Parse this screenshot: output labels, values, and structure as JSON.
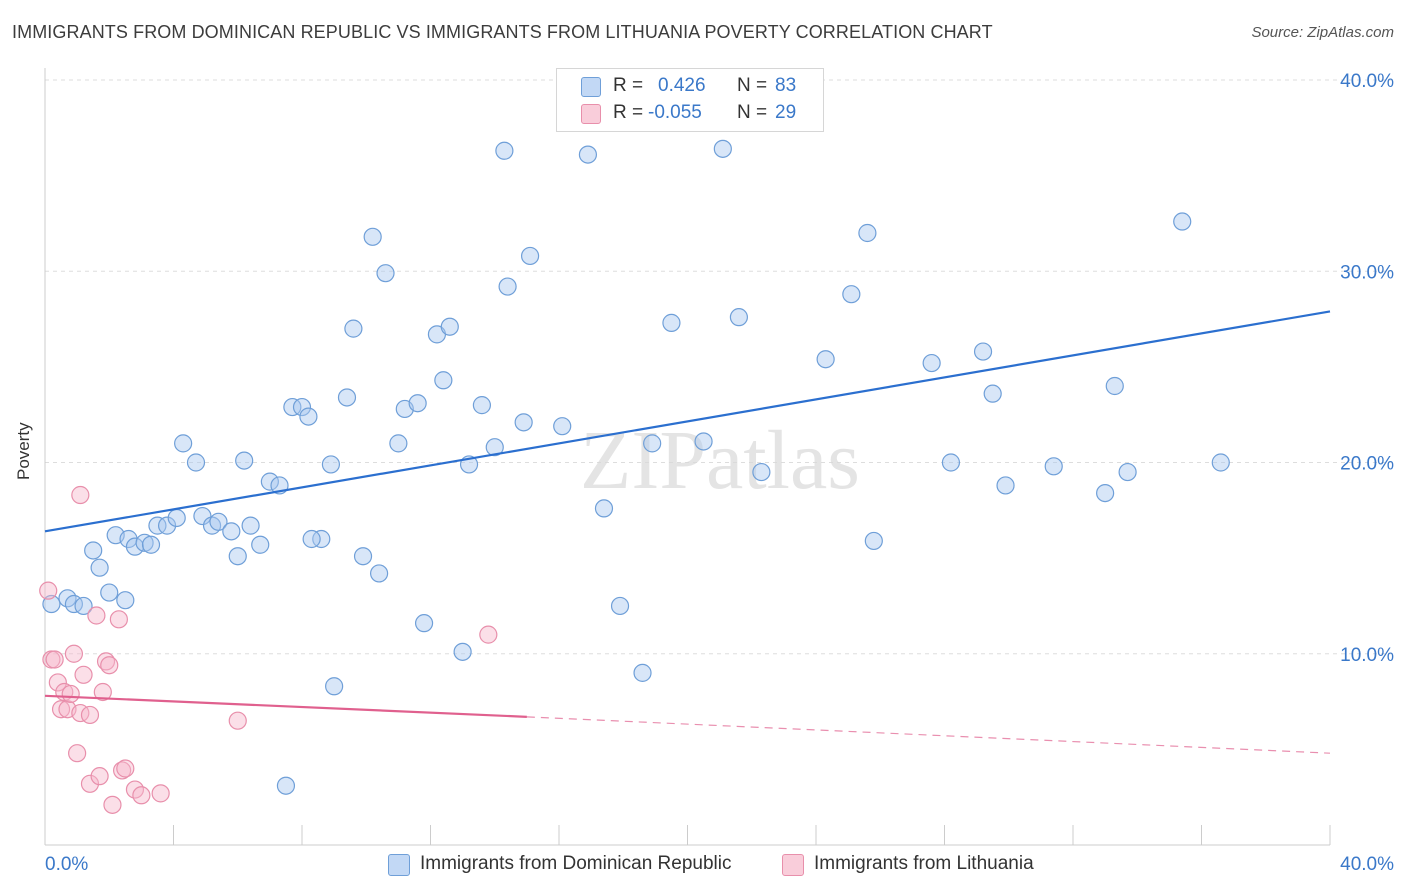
{
  "title": "IMMIGRANTS FROM DOMINICAN REPUBLIC VS IMMIGRANTS FROM LITHUANIA POVERTY CORRELATION CHART",
  "source": "Source: ZipAtlas.com",
  "watermark": "ZIPatlas",
  "legend": {
    "rows": [
      {
        "r_label": "R =",
        "r_value": "0.426",
        "n_label": "N =",
        "n_value": "83"
      },
      {
        "r_label": "R =",
        "r_value": "-0.055",
        "n_label": "N =",
        "n_value": "29"
      }
    ]
  },
  "colors": {
    "blue_fill": "#a9c8f0",
    "blue_stroke": "#6f9fd8",
    "blue_line": "#2b6fcf",
    "pink_fill": "#f6b8cb",
    "pink_stroke": "#e88fab",
    "pink_line": "#e0608e",
    "axis_text": "#3a78c9",
    "grid": "#dddddd"
  },
  "chart_data": {
    "type": "scatter",
    "xlabel": "",
    "ylabel": "Poverty",
    "xlim": [
      0,
      40
    ],
    "ylim": [
      0,
      40
    ],
    "x_tick_labels": [
      "0.0%",
      "40.0%"
    ],
    "y_ticks": [
      10,
      20,
      30,
      40
    ],
    "y_tick_labels": [
      "10.0%",
      "20.0%",
      "30.0%",
      "40.0%"
    ],
    "grid": "horizontal dashed",
    "legend_position": "top-center",
    "series": [
      {
        "name": "Immigrants from Dominican Republic",
        "color": "blue",
        "trend": {
          "x0": 0,
          "y0": 16.4,
          "x1": 40,
          "y1": 27.9
        },
        "points": [
          [
            0.2,
            12.6
          ],
          [
            0.7,
            12.9
          ],
          [
            0.9,
            12.6
          ],
          [
            1.2,
            12.5
          ],
          [
            1.5,
            15.4
          ],
          [
            1.7,
            14.5
          ],
          [
            2.0,
            13.2
          ],
          [
            2.2,
            16.2
          ],
          [
            2.6,
            16.0
          ],
          [
            2.8,
            15.6
          ],
          [
            3.1,
            15.8
          ],
          [
            3.3,
            15.7
          ],
          [
            3.5,
            16.7
          ],
          [
            3.8,
            16.7
          ],
          [
            4.1,
            17.1
          ],
          [
            4.3,
            21.0
          ],
          [
            4.7,
            20.0
          ],
          [
            4.9,
            17.2
          ],
          [
            5.2,
            16.7
          ],
          [
            5.4,
            16.9
          ],
          [
            5.8,
            16.4
          ],
          [
            6.0,
            15.1
          ],
          [
            6.2,
            20.1
          ],
          [
            6.4,
            16.7
          ],
          [
            6.7,
            15.7
          ],
          [
            7.0,
            19.0
          ],
          [
            7.3,
            18.8
          ],
          [
            7.7,
            22.9
          ],
          [
            8.0,
            22.9
          ],
          [
            8.2,
            22.4
          ],
          [
            8.6,
            16.0
          ],
          [
            8.9,
            19.9
          ],
          [
            9.4,
            23.4
          ],
          [
            9.6,
            27.0
          ],
          [
            9.9,
            15.1
          ],
          [
            10.2,
            31.8
          ],
          [
            10.4,
            14.2
          ],
          [
            10.6,
            29.9
          ],
          [
            11.0,
            21.0
          ],
          [
            11.2,
            22.8
          ],
          [
            11.6,
            23.1
          ],
          [
            11.8,
            11.6
          ],
          [
            12.2,
            26.7
          ],
          [
            12.4,
            24.3
          ],
          [
            12.6,
            27.1
          ],
          [
            13.0,
            10.1
          ],
          [
            13.2,
            19.9
          ],
          [
            13.6,
            23.0
          ],
          [
            14.0,
            20.8
          ],
          [
            14.3,
            36.3
          ],
          [
            14.4,
            29.2
          ],
          [
            14.9,
            22.1
          ],
          [
            15.1,
            30.8
          ],
          [
            16.1,
            21.9
          ],
          [
            16.9,
            36.1
          ],
          [
            17.4,
            17.6
          ],
          [
            17.9,
            12.5
          ],
          [
            18.6,
            9.0
          ],
          [
            18.9,
            21.0
          ],
          [
            19.5,
            27.3
          ],
          [
            20.5,
            21.1
          ],
          [
            21.1,
            36.4
          ],
          [
            21.6,
            27.6
          ],
          [
            22.3,
            19.5
          ],
          [
            24.3,
            25.4
          ],
          [
            25.1,
            28.8
          ],
          [
            25.6,
            32.0
          ],
          [
            25.8,
            15.9
          ],
          [
            27.6,
            25.2
          ],
          [
            28.2,
            20.0
          ],
          [
            29.2,
            25.8
          ],
          [
            29.5,
            23.6
          ],
          [
            29.9,
            18.8
          ],
          [
            31.4,
            19.8
          ],
          [
            33.0,
            18.4
          ],
          [
            33.3,
            24.0
          ],
          [
            33.7,
            19.5
          ],
          [
            35.4,
            32.6
          ],
          [
            36.6,
            20.0
          ],
          [
            7.5,
            3.1
          ],
          [
            2.5,
            12.8
          ],
          [
            8.3,
            16.0
          ],
          [
            9.0,
            8.3
          ]
        ]
      },
      {
        "name": "Immigrants from Lithuania",
        "color": "pink",
        "trend": {
          "x0": 0,
          "y0": 7.8,
          "x1": 15,
          "y1": 6.7,
          "x_dash_end": 40,
          "y_dash_end": 4.8
        },
        "points": [
          [
            0.1,
            13.3
          ],
          [
            0.2,
            9.7
          ],
          [
            0.3,
            9.7
          ],
          [
            0.4,
            8.5
          ],
          [
            0.5,
            7.1
          ],
          [
            0.6,
            8.0
          ],
          [
            0.7,
            7.1
          ],
          [
            0.8,
            7.9
          ],
          [
            0.9,
            10.0
          ],
          [
            1.0,
            4.8
          ],
          [
            1.1,
            6.9
          ],
          [
            1.2,
            8.9
          ],
          [
            1.4,
            3.2
          ],
          [
            1.4,
            6.8
          ],
          [
            1.6,
            12.0
          ],
          [
            1.7,
            3.6
          ],
          [
            1.8,
            8.0
          ],
          [
            1.9,
            9.6
          ],
          [
            2.0,
            9.4
          ],
          [
            2.1,
            2.1
          ],
          [
            2.3,
            11.8
          ],
          [
            2.4,
            3.9
          ],
          [
            2.5,
            4.0
          ],
          [
            2.8,
            2.9
          ],
          [
            3.0,
            2.6
          ],
          [
            3.6,
            2.7
          ],
          [
            6.0,
            6.5
          ],
          [
            13.8,
            11.0
          ],
          [
            1.1,
            18.3
          ]
        ]
      }
    ]
  }
}
